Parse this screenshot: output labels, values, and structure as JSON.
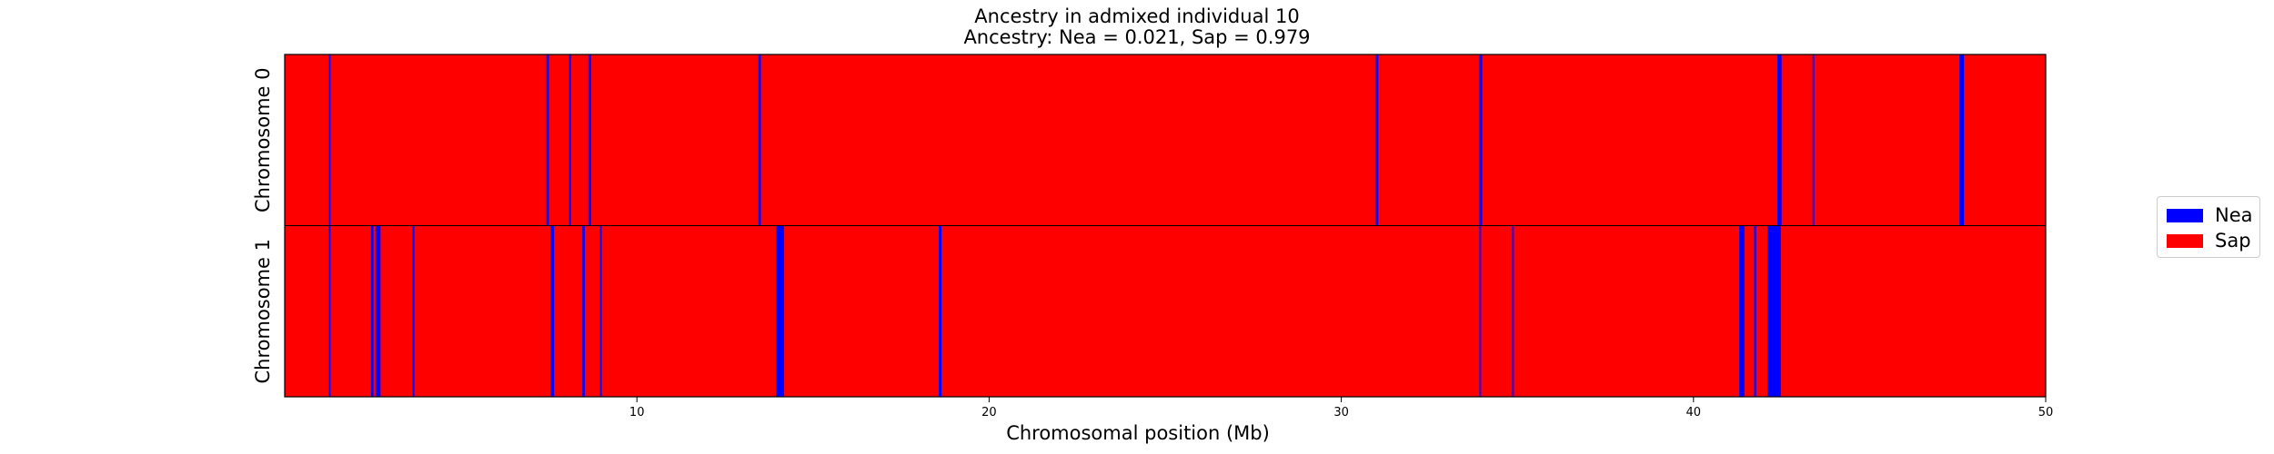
{
  "chart_data": {
    "type": "heatmap",
    "title_lines": [
      "Ancestry in admixed individual 10",
      "Ancestry: Nea = 0.021, Sap = 0.979"
    ],
    "xlabel": "Chromosomal position (Mb)",
    "xlim": [
      0,
      50
    ],
    "x_ticks": [
      10,
      20,
      30,
      40,
      50
    ],
    "legend": {
      "placement": "right, outside plot",
      "entries": [
        {
          "name": "Nea",
          "color": "#0000ff"
        },
        {
          "name": "Sap",
          "color": "#ff0000"
        }
      ]
    },
    "background_ancestry": "Sap",
    "rows": [
      {
        "label": "Chromosome 0",
        "nea_segments": [
          [
            1.25,
            1.3
          ],
          [
            7.43,
            7.5
          ],
          [
            8.07,
            8.13
          ],
          [
            8.62,
            8.7
          ],
          [
            13.45,
            13.52
          ],
          [
            30.98,
            31.05
          ],
          [
            33.92,
            34.0
          ],
          [
            42.38,
            42.5
          ],
          [
            43.38,
            43.43
          ],
          [
            47.55,
            47.68
          ]
        ]
      },
      {
        "label": "Chromosome 1",
        "nea_segments": [
          [
            1.25,
            1.3
          ],
          [
            2.45,
            2.52
          ],
          [
            2.58,
            2.72
          ],
          [
            3.63,
            3.68
          ],
          [
            7.55,
            7.65
          ],
          [
            8.45,
            8.52
          ],
          [
            8.95,
            9.0
          ],
          [
            13.95,
            14.18
          ],
          [
            18.57,
            18.65
          ],
          [
            33.92,
            33.97
          ],
          [
            34.85,
            34.9
          ],
          [
            41.3,
            41.45
          ],
          [
            41.72,
            41.78
          ],
          [
            42.1,
            42.48
          ]
        ]
      }
    ]
  }
}
